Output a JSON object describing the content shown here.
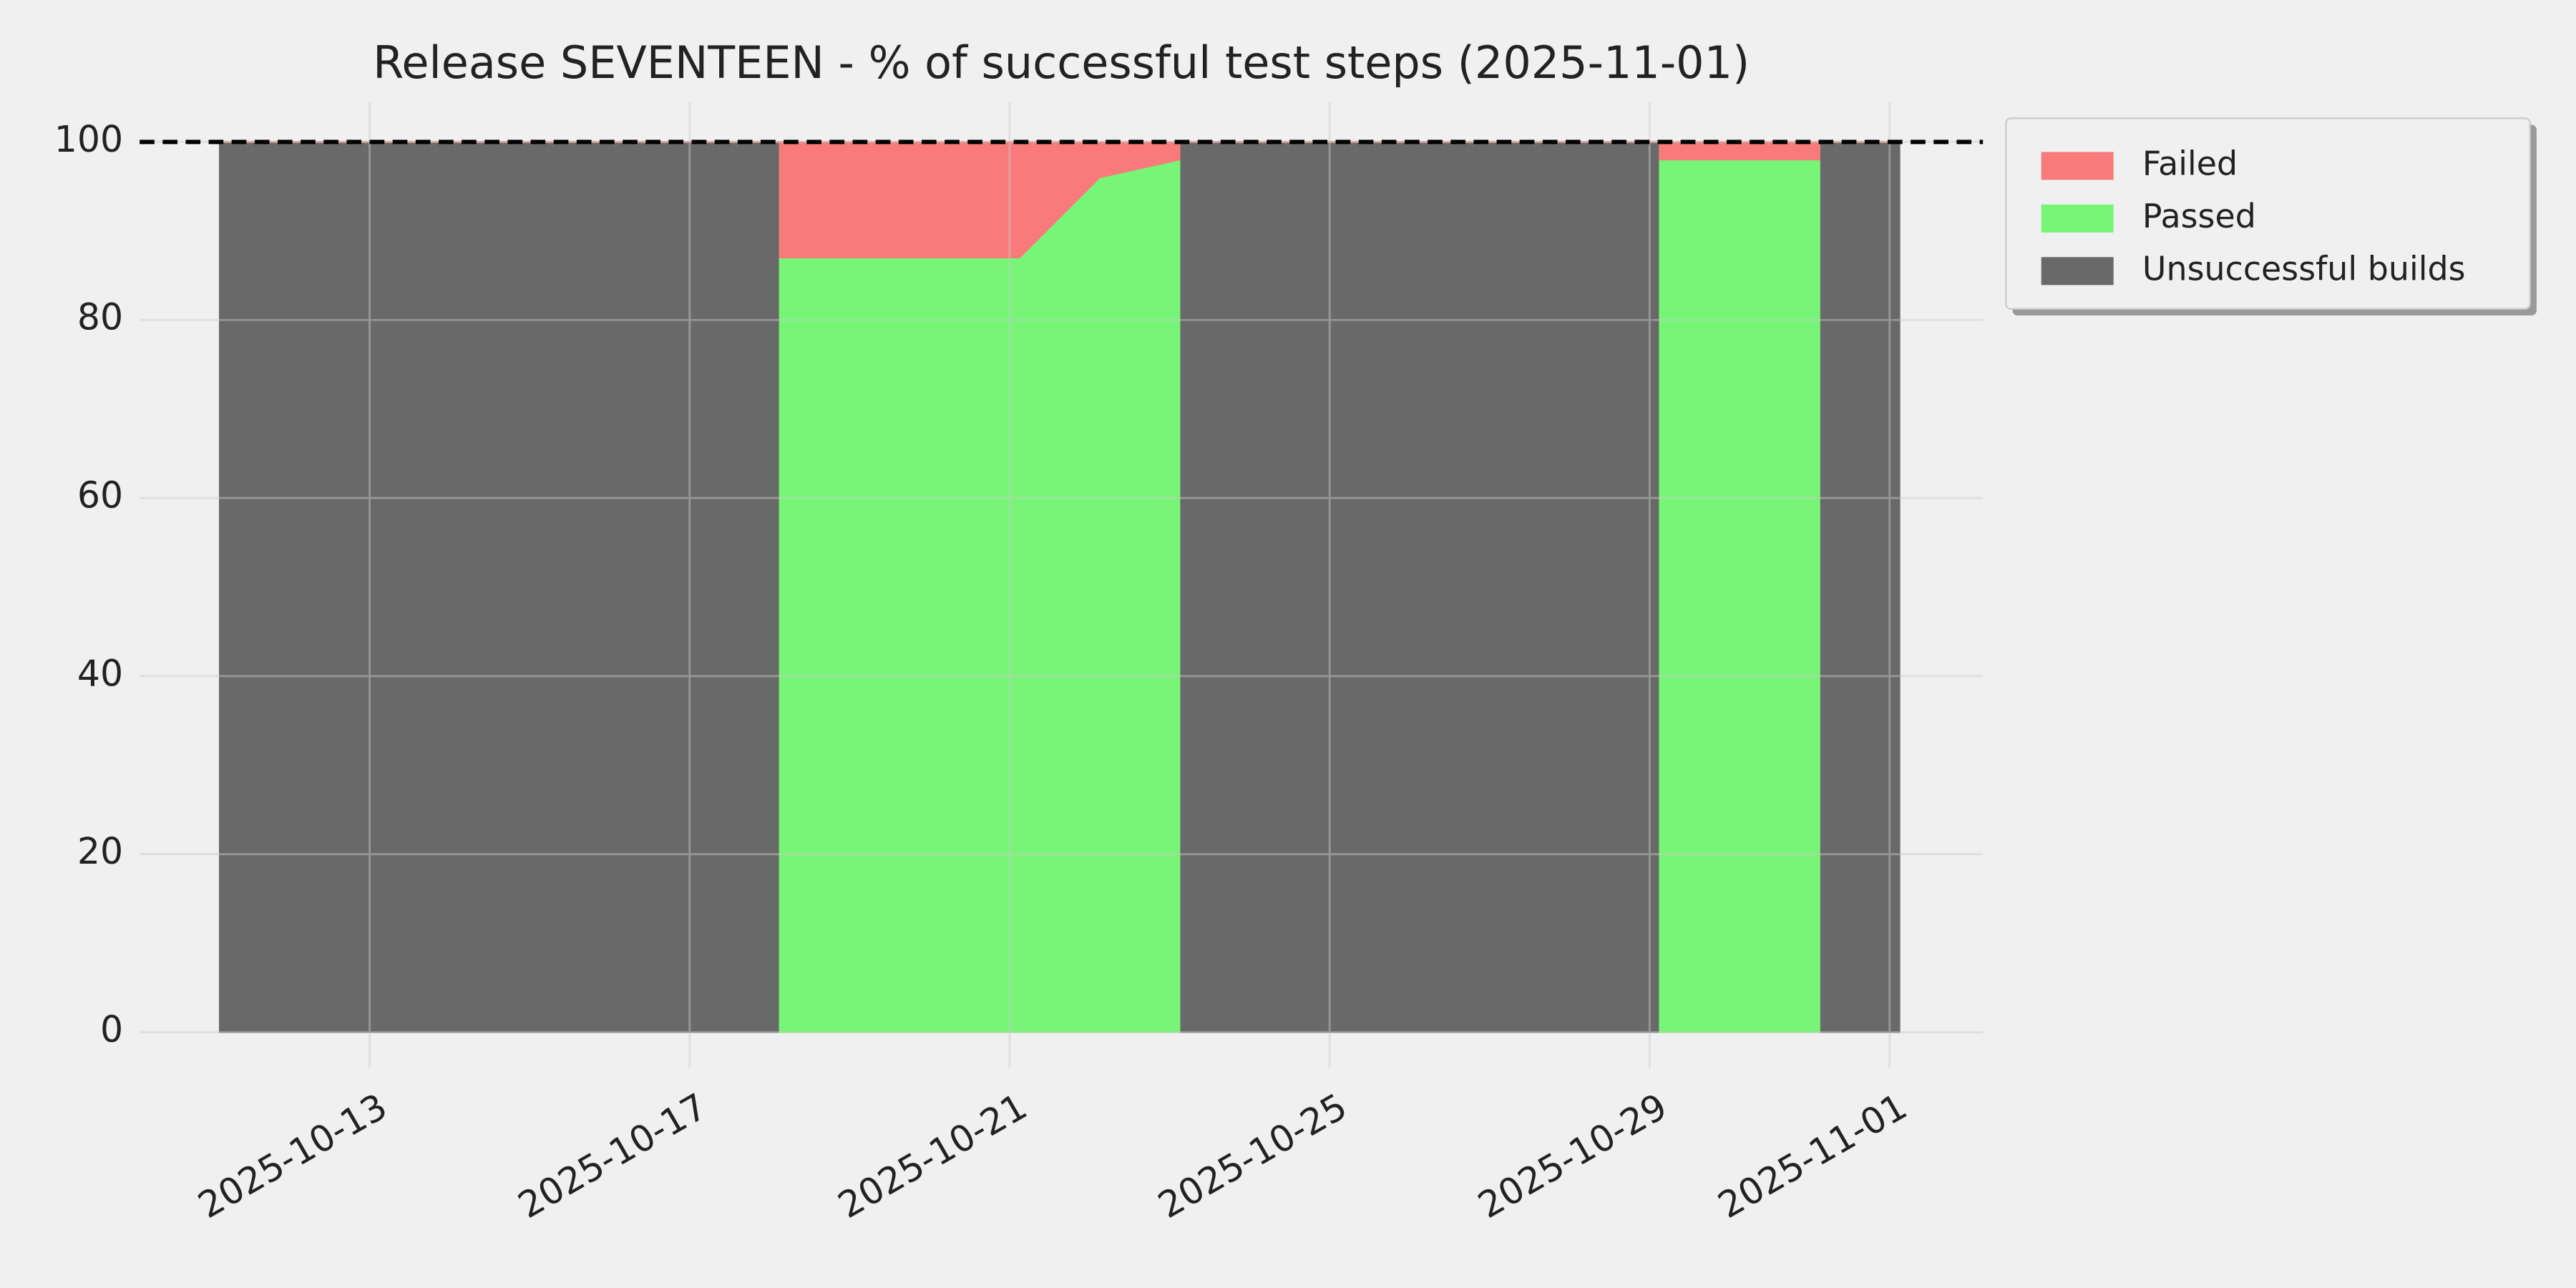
{
  "chart_data": {
    "type": "stackplot",
    "title": "Release SEVENTEEN - % of successful test steps (2025-11-01)",
    "x": [
      "2025-10-11T03:00",
      "2025-10-18T03:00",
      "2025-10-18T03:00",
      "2025-10-19T03:00",
      "2025-10-20T03:00",
      "2025-10-21T03:00",
      "2025-10-22T03:00",
      "2025-10-23T03:00",
      "2025-10-23T03:00",
      "2025-10-29T03:00",
      "2025-10-29T03:00",
      "2025-10-30T03:00",
      "2025-10-31T03:00",
      "2025-10-31T03:00",
      "2025-11-01T03:00"
    ],
    "series": [
      {
        "name": "Failed",
        "color": "#f87a7a",
        "values": [
          0,
          0,
          13,
          13,
          13,
          13,
          4,
          2,
          0,
          0,
          2,
          2,
          2,
          0,
          0
        ]
      },
      {
        "name": "Passed",
        "color": "#77f577",
        "values": [
          0,
          0,
          87,
          87,
          87,
          87,
          96,
          98,
          0,
          0,
          98,
          98,
          98,
          0,
          0
        ]
      },
      {
        "name": "Unsuccessful builds",
        "color": "#696969",
        "values": [
          100,
          100,
          0,
          0,
          0,
          0,
          0,
          0,
          100,
          100,
          0,
          0,
          0,
          100,
          100
        ]
      }
    ],
    "xlim": [
      "2025-10-10T03:00",
      "2025-11-02T04:00"
    ],
    "xticks": [
      "2025-10-13",
      "2025-10-17",
      "2025-10-21",
      "2025-10-25",
      "2025-10-29",
      "2025-11-01"
    ],
    "ylim": [
      -4,
      104.5
    ],
    "yticks": [
      0,
      20,
      40,
      60,
      80,
      100
    ],
    "hline": 100,
    "grid": true,
    "legend": "outside upper right"
  }
}
